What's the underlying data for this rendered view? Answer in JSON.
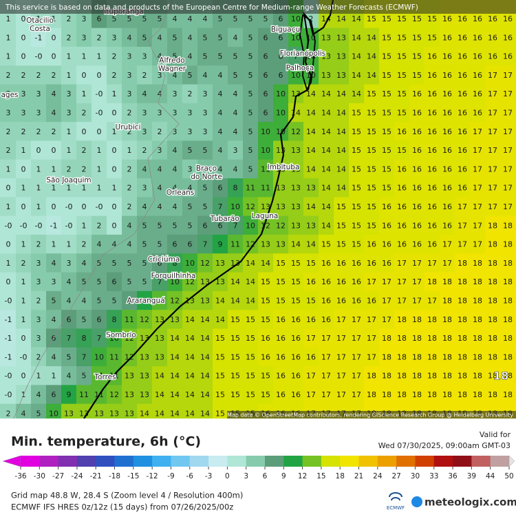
{
  "header": {
    "notice": "This service is based on data and products of the European Centre for Medium-range Weather Forecasts (ECMWF)",
    "attribution": "Map data © OpenStreetMap contributors, rendering GIScience Research Group @ Heidelberg University"
  },
  "places": [
    {
      "lines": [
        "Ituporanga"
      ]
    },
    {
      "lines": [
        "Otacilio",
        "Costa"
      ]
    },
    {
      "lines": [
        "Alfredo",
        "Wagner"
      ]
    },
    {
      "lines": [
        "Biguaçu"
      ]
    },
    {
      "lines": [
        "Florianópolis"
      ]
    },
    {
      "lines": [
        "Palhoça"
      ]
    },
    {
      "lines": [
        "ages"
      ]
    },
    {
      "lines": [
        "Urubici"
      ]
    },
    {
      "lines": [
        "Braço",
        "do Norte"
      ]
    },
    {
      "lines": [
        "Imbituba"
      ]
    },
    {
      "lines": [
        "São Joaquim"
      ]
    },
    {
      "lines": [
        "Orleans"
      ]
    },
    {
      "lines": [
        "Tubarão"
      ]
    },
    {
      "lines": [
        "Laguna"
      ]
    },
    {
      "lines": [
        "Criciúma"
      ]
    },
    {
      "lines": [
        "Forquilhinha"
      ]
    },
    {
      "lines": [
        "Araranguá"
      ]
    },
    {
      "lines": [
        "Sombrio"
      ]
    },
    {
      "lines": [
        "Torres"
      ]
    }
  ],
  "grid": {
    "rows": [
      [
        1,
        0,
        1,
        1,
        2,
        3,
        6,
        5,
        5,
        5,
        5,
        4,
        4,
        4,
        5,
        5,
        5,
        5,
        6,
        10,
        2,
        14,
        14,
        14,
        15,
        15,
        15,
        15,
        15,
        16,
        16,
        16,
        16,
        16
      ],
      [
        1,
        0,
        -1,
        0,
        2,
        3,
        2,
        3,
        4,
        5,
        4,
        5,
        4,
        5,
        5,
        4,
        5,
        6,
        6,
        10,
        10,
        13,
        13,
        14,
        14,
        15,
        15,
        15,
        15,
        16,
        16,
        16,
        16,
        16
      ],
      [
        1,
        0,
        "-0",
        0,
        1,
        1,
        1,
        2,
        3,
        3,
        4,
        5,
        4,
        5,
        5,
        5,
        5,
        6,
        6,
        7,
        10,
        13,
        13,
        14,
        14,
        15,
        15,
        15,
        16,
        16,
        16,
        16,
        16,
        16
      ],
      [
        2,
        2,
        2,
        2,
        1,
        0,
        0,
        2,
        3,
        2,
        3,
        4,
        5,
        4,
        4,
        5,
        5,
        6,
        6,
        10,
        10,
        13,
        13,
        14,
        14,
        15,
        15,
        15,
        16,
        16,
        16,
        16,
        17,
        17
      ],
      [
        3,
        3,
        3,
        4,
        3,
        1,
        "-0",
        1,
        3,
        4,
        4,
        3,
        2,
        3,
        4,
        4,
        5,
        6,
        10,
        13,
        14,
        14,
        14,
        14,
        15,
        15,
        15,
        16,
        16,
        16,
        16,
        16,
        17,
        17
      ],
      [
        3,
        3,
        3,
        4,
        3,
        2,
        "-0",
        0,
        2,
        3,
        3,
        3,
        3,
        3,
        4,
        4,
        5,
        6,
        10,
        14,
        14,
        14,
        14,
        15,
        15,
        15,
        15,
        16,
        16,
        16,
        16,
        16,
        17,
        17
      ],
      [
        2,
        2,
        2,
        2,
        1,
        0,
        0,
        1,
        2,
        3,
        2,
        3,
        3,
        3,
        4,
        4,
        5,
        10,
        10,
        12,
        14,
        14,
        14,
        15,
        15,
        15,
        16,
        16,
        16,
        16,
        16,
        17,
        17,
        17
      ],
      [
        2,
        1,
        0,
        0,
        1,
        2,
        1,
        0,
        1,
        2,
        3,
        4,
        5,
        5,
        4,
        3,
        5,
        10,
        13,
        13,
        14,
        14,
        14,
        15,
        15,
        15,
        15,
        16,
        16,
        16,
        16,
        17,
        17,
        17
      ],
      [
        1,
        0,
        1,
        1,
        2,
        2,
        1,
        0,
        2,
        4,
        4,
        4,
        3,
        4,
        4,
        4,
        5,
        11,
        13,
        13,
        14,
        14,
        14,
        15,
        15,
        15,
        16,
        16,
        16,
        16,
        16,
        17,
        17,
        17
      ],
      [
        0,
        1,
        1,
        1,
        1,
        1,
        1,
        1,
        2,
        3,
        4,
        4,
        4,
        5,
        6,
        8,
        11,
        11,
        13,
        13,
        13,
        14,
        14,
        15,
        15,
        15,
        16,
        16,
        16,
        16,
        16,
        17,
        17,
        17
      ],
      [
        1,
        0,
        1,
        0,
        "-0",
        0,
        "-0",
        0,
        2,
        4,
        4,
        4,
        5,
        5,
        7,
        10,
        12,
        13,
        13,
        13,
        14,
        14,
        15,
        15,
        15,
        16,
        16,
        16,
        16,
        16,
        17,
        17,
        17,
        17
      ],
      [
        "-0",
        "-0",
        "-0",
        -1,
        "-0",
        1,
        2,
        0,
        4,
        5,
        5,
        5,
        5,
        6,
        6,
        7,
        10,
        12,
        12,
        13,
        13,
        14,
        15,
        15,
        15,
        16,
        16,
        16,
        16,
        16,
        17,
        17,
        18,
        18
      ],
      [
        0,
        1,
        2,
        1,
        1,
        2,
        4,
        4,
        4,
        5,
        5,
        6,
        6,
        7,
        9,
        11,
        12,
        13,
        13,
        14,
        14,
        15,
        15,
        15,
        16,
        16,
        16,
        16,
        16,
        17,
        17,
        17,
        18,
        18
      ],
      [
        1,
        2,
        3,
        4,
        3,
        4,
        5,
        5,
        5,
        5,
        6,
        8,
        10,
        12,
        13,
        13,
        14,
        14,
        15,
        15,
        15,
        16,
        16,
        16,
        16,
        16,
        17,
        17,
        17,
        17,
        18,
        18,
        18,
        18
      ],
      [
        0,
        1,
        3,
        3,
        4,
        5,
        5,
        6,
        5,
        5,
        7,
        10,
        12,
        13,
        13,
        14,
        14,
        15,
        15,
        15,
        16,
        16,
        16,
        16,
        17,
        17,
        17,
        17,
        18,
        18,
        18,
        18,
        18,
        18
      ],
      [
        "-0",
        1,
        2,
        5,
        4,
        4,
        5,
        5,
        6,
        9,
        11,
        12,
        13,
        13,
        14,
        14,
        14,
        15,
        15,
        15,
        15,
        16,
        16,
        16,
        16,
        17,
        17,
        17,
        17,
        18,
        18,
        18,
        18,
        18
      ],
      [
        -1,
        1,
        3,
        4,
        6,
        5,
        6,
        8,
        11,
        12,
        13,
        13,
        14,
        14,
        14,
        15,
        15,
        15,
        16,
        16,
        16,
        16,
        17,
        17,
        17,
        17,
        18,
        18,
        18,
        18,
        18,
        18,
        18,
        18
      ],
      [
        -1,
        0,
        3,
        6,
        7,
        8,
        7,
        10,
        12,
        13,
        13,
        14,
        14,
        14,
        15,
        15,
        15,
        16,
        16,
        16,
        17,
        17,
        17,
        17,
        17,
        18,
        18,
        18,
        18,
        18,
        18,
        18,
        18,
        18
      ],
      [
        -1,
        "-0",
        2,
        4,
        5,
        7,
        10,
        11,
        12,
        13,
        13,
        14,
        14,
        14,
        15,
        15,
        15,
        16,
        16,
        16,
        16,
        17,
        17,
        17,
        17,
        18,
        18,
        18,
        18,
        18,
        18,
        18,
        18,
        18
      ],
      [
        "-0",
        0,
        1,
        1,
        4,
        5,
        11,
        11,
        13,
        13,
        14,
        14,
        14,
        14,
        15,
        15,
        15,
        15,
        16,
        16,
        17,
        17,
        17,
        17,
        18,
        18,
        18,
        18,
        18,
        18,
        18,
        18,
        18,
        18
      ],
      [
        "-0",
        1,
        4,
        6,
        9,
        11,
        11,
        12,
        13,
        13,
        14,
        14,
        14,
        14,
        15,
        15,
        15,
        15,
        16,
        16,
        17,
        17,
        17,
        17,
        18,
        18,
        18,
        18,
        18,
        18,
        18,
        18,
        18,
        18
      ],
      [
        2,
        4,
        5,
        10,
        13,
        13,
        13,
        13,
        13,
        14,
        14,
        14,
        14,
        14,
        15,
        15,
        15,
        16,
        16,
        16,
        17,
        17,
        17,
        17,
        18,
        18,
        18,
        18,
        18,
        18,
        18,
        18,
        18,
        18
      ]
    ]
  },
  "edge_label": "18",
  "footer": {
    "title": "Min. temperature, 6h (°C)",
    "valid_label": "Valid for",
    "valid_time": "Wed 07/30/2025, 09:00am GMT-03",
    "grid_info": "Grid map 48.8 W, 28.4 S (Zoom level 4 / Resolution 400m)",
    "model_info": "ECMWF IFS HRES 0z/12z (15 days) from 07/26/2025/00z",
    "ecmwf": "ECMWF",
    "brand": "meteologix.com"
  },
  "colorbar": {
    "ticks": [
      -36,
      -30,
      -27,
      -24,
      -21,
      -18,
      -15,
      -12,
      -9,
      -6,
      -3,
      0,
      3,
      6,
      9,
      12,
      15,
      18,
      21,
      24,
      27,
      30,
      33,
      36,
      39,
      44,
      50
    ],
    "colors": [
      "#e000e0",
      "#b020c0",
      "#8030b0",
      "#5040b0",
      "#3050c0",
      "#2070d0",
      "#2090e0",
      "#40b0f0",
      "#70c8f0",
      "#a0d8f0",
      "#c8ecf0",
      "#b0e6d6",
      "#86ccac",
      "#5c9e7a",
      "#22a444",
      "#74c224",
      "#d6e200",
      "#f0e400",
      "#f0c200",
      "#eca000",
      "#e07000",
      "#d04000",
      "#b01010",
      "#901018",
      "#c06060",
      "#c0a0a0",
      "#e4e4e4"
    ]
  }
}
